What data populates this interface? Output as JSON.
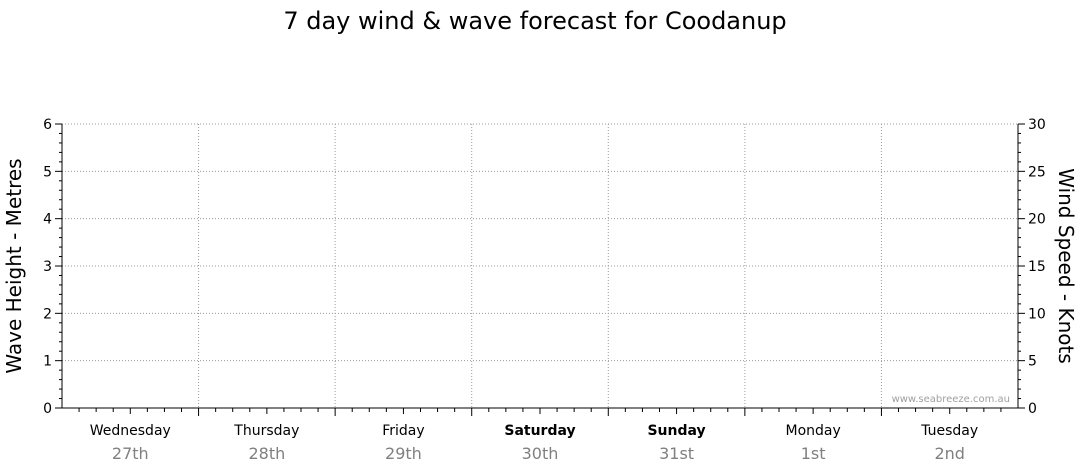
{
  "chart_data": {
    "type": "line",
    "title": "7 day wind & wave forecast for Coodanup",
    "y_left": {
      "label": "Wave Height - Metres",
      "range": [
        0,
        6
      ],
      "ticks": [
        "0",
        "1",
        "2",
        "3",
        "4",
        "5",
        "6"
      ]
    },
    "y_right": {
      "label": "Wind Speed - Knots",
      "range": [
        0,
        30
      ],
      "ticks": [
        "0",
        "5",
        "10",
        "15",
        "20",
        "25",
        "30"
      ]
    },
    "days": [
      {
        "name": "Wednesday",
        "date": "27th",
        "weekend": false
      },
      {
        "name": "Thursday",
        "date": "28th",
        "weekend": false
      },
      {
        "name": "Friday",
        "date": "29th",
        "weekend": false
      },
      {
        "name": "Saturday",
        "date": "30th",
        "weekend": true
      },
      {
        "name": "Sunday",
        "date": "31st",
        "weekend": true
      },
      {
        "name": "Monday",
        "date": "1st",
        "weekend": false
      },
      {
        "name": "Tuesday",
        "date": "2nd",
        "weekend": false
      }
    ],
    "series": [],
    "grid": true,
    "watermark": "www.seabreeze.com.au"
  }
}
